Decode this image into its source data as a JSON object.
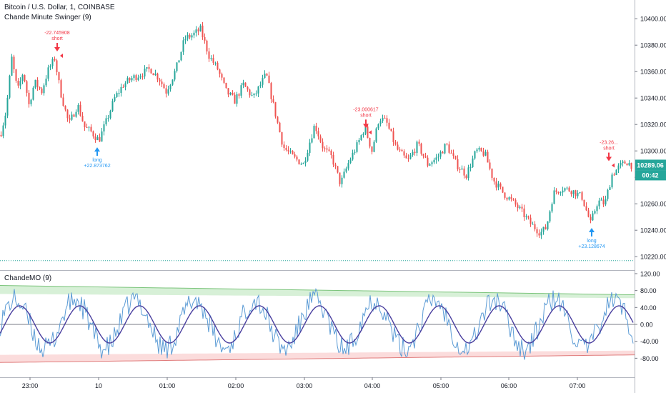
{
  "header": {
    "title": "Bitcoin / U.S. Dollar, 1, COINBASE",
    "subtitle": "Chande Minute Swinger (9)",
    "indicator_title": "ChandeMO (9)"
  },
  "price_badge": {
    "value": "10289.06",
    "countdown": "00:42",
    "color": "#26a69a"
  },
  "colors": {
    "up": "#26a69a",
    "down": "#ef5350",
    "cmo": "#5b9bd5",
    "signal": "#4a3f9f",
    "ob_fill": "#d7f0d7",
    "os_fill": "#fbdcdc",
    "ob_line": "#7bc47b",
    "os_line": "#e07b7b",
    "long": "#2196f3",
    "short": "#f23645"
  },
  "chart_data": [
    {
      "type": "candlestick",
      "title": "Bitcoin / U.S. Dollar, 1, COINBASE",
      "ylim": [
        10212,
        10412
      ],
      "y_ticks": [
        "10400.00",
        "10380.00",
        "10360.00",
        "10340.00",
        "10320.00",
        "10300.00",
        "10280.00",
        "10260.00",
        "10240.00",
        "10220.00"
      ],
      "y_tick_values": [
        10400,
        10380,
        10360,
        10340,
        10320,
        10300,
        10280,
        10260,
        10240,
        10220
      ],
      "price_path": [
        [
          0,
          10312
        ],
        [
          8,
          10330
        ],
        [
          16,
          10370
        ],
        [
          24,
          10345
        ],
        [
          32,
          10360
        ],
        [
          40,
          10335
        ],
        [
          48,
          10352
        ],
        [
          58,
          10345
        ],
        [
          66,
          10360
        ],
        [
          76,
          10370
        ],
        [
          84,
          10345
        ],
        [
          96,
          10320
        ],
        [
          108,
          10335
        ],
        [
          118,
          10318
        ],
        [
          126,
          10315
        ],
        [
          138,
          10308
        ],
        [
          148,
          10322
        ],
        [
          160,
          10340
        ],
        [
          172,
          10350
        ],
        [
          184,
          10355
        ],
        [
          196,
          10358
        ],
        [
          210,
          10362
        ],
        [
          222,
          10355
        ],
        [
          232,
          10345
        ],
        [
          246,
          10362
        ],
        [
          258,
          10385
        ],
        [
          270,
          10388
        ],
        [
          280,
          10392
        ],
        [
          292,
          10372
        ],
        [
          304,
          10362
        ],
        [
          316,
          10345
        ],
        [
          328,
          10338
        ],
        [
          340,
          10350
        ],
        [
          354,
          10340
        ],
        [
          372,
          10358
        ],
        [
          384,
          10330
        ],
        [
          396,
          10303
        ],
        [
          410,
          10295
        ],
        [
          424,
          10290
        ],
        [
          440,
          10320
        ],
        [
          452,
          10302
        ],
        [
          464,
          10295
        ],
        [
          476,
          10275
        ],
        [
          488,
          10292
        ],
        [
          500,
          10305
        ],
        [
          510,
          10318
        ],
        [
          520,
          10300
        ],
        [
          530,
          10325
        ],
        [
          540,
          10322
        ],
        [
          554,
          10302
        ],
        [
          570,
          10292
        ],
        [
          584,
          10305
        ],
        [
          598,
          10290
        ],
        [
          612,
          10295
        ],
        [
          624,
          10305
        ],
        [
          638,
          10290
        ],
        [
          652,
          10282
        ],
        [
          666,
          10300
        ],
        [
          678,
          10298
        ],
        [
          690,
          10278
        ],
        [
          704,
          10268
        ],
        [
          716,
          10262
        ],
        [
          728,
          10255
        ],
        [
          742,
          10245
        ],
        [
          756,
          10238
        ],
        [
          764,
          10242
        ],
        [
          774,
          10268
        ],
        [
          786,
          10272
        ],
        [
          800,
          10270
        ],
        [
          814,
          10265
        ],
        [
          826,
          10245
        ],
        [
          836,
          10262
        ],
        [
          846,
          10260
        ],
        [
          856,
          10282
        ],
        [
          866,
          10288
        ],
        [
          876,
          10292
        ],
        [
          884,
          10289
        ]
      ],
      "series": [
        {
          "name": "Bitcoin / U.S. Dollar"
        }
      ],
      "signals": [
        {
          "kind": "short",
          "label": "short",
          "value": "-22.745908",
          "x_bar": 80,
          "price": 10372
        },
        {
          "kind": "long",
          "label": "long",
          "value": "+22.873762",
          "x_bar": 136,
          "price": 10306
        },
        {
          "kind": "short",
          "label": "short",
          "value": "-23.000617",
          "x_bar": 512,
          "price": 10314
        },
        {
          "kind": "long",
          "label": "long",
          "value": "+23.128674",
          "x_bar": 828,
          "price": 10245
        },
        {
          "kind": "short",
          "label": "short",
          "value": "-23.26...",
          "x_bar": 852,
          "price": 10289
        }
      ],
      "dotted_level": 10217
    },
    {
      "type": "line",
      "title": "ChandeMO (9)",
      "ylim": [
        -125,
        125
      ],
      "y_ticks": [
        "120.00",
        "80.00",
        "40.00",
        "0.00",
        "-40.00",
        "-80.00"
      ],
      "y_tick_values": [
        120,
        80,
        40,
        0,
        -40,
        -80
      ],
      "x_tick_labels": [
        "23:00",
        "10",
        "01:00",
        "02:00",
        "03:00",
        "04:00",
        "05:00",
        "06:00",
        "07:00"
      ],
      "x_tick_positions": [
        42,
        138,
        234,
        330,
        426,
        521,
        617,
        712,
        808
      ],
      "upper_band": {
        "start": 92,
        "end": 70
      },
      "lower_band": {
        "start": -72,
        "end": -62
      },
      "series": [
        {
          "name": "CMO",
          "period_bars": 26,
          "amplitude": 60
        },
        {
          "name": "Signal",
          "period_bars": 26,
          "amplitude": 42
        }
      ]
    }
  ]
}
